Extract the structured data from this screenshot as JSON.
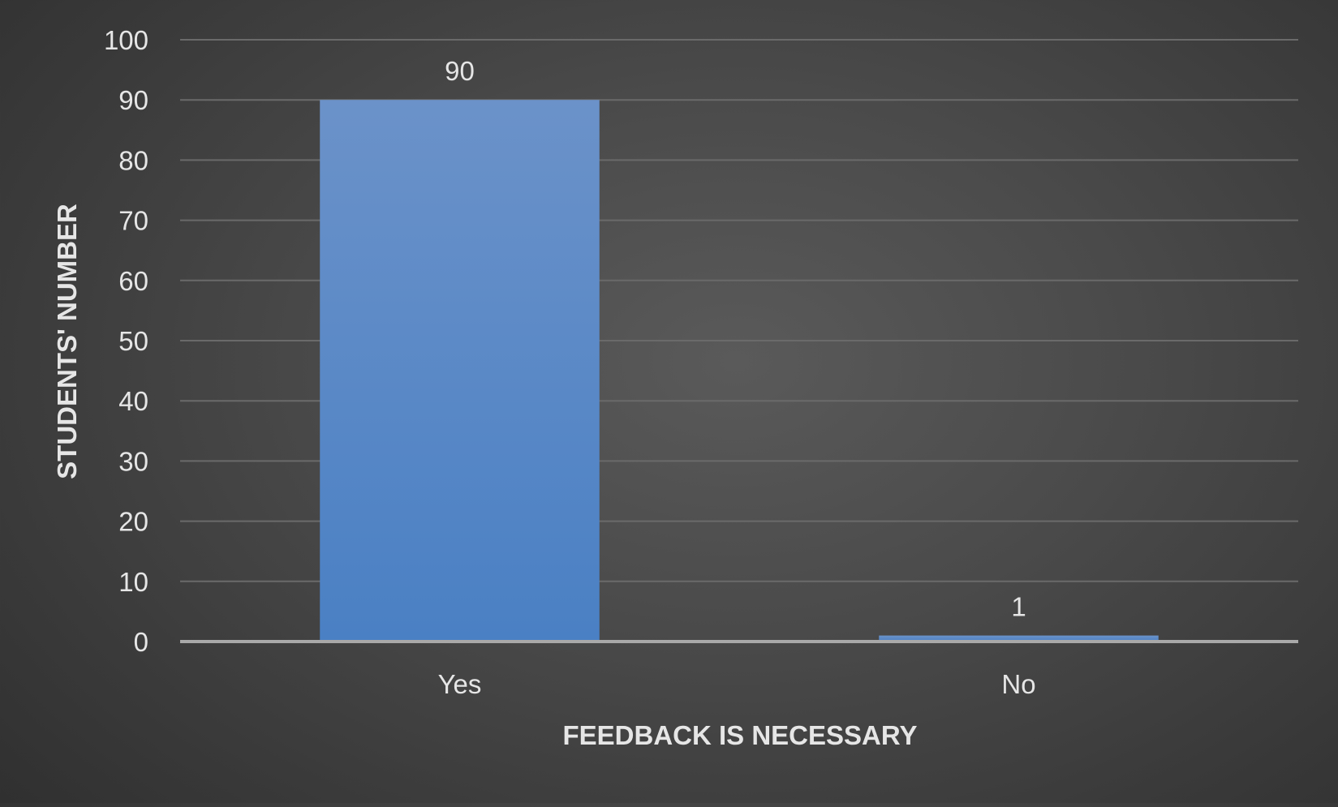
{
  "chart_data": {
    "type": "bar",
    "categories": [
      "Yes",
      "No"
    ],
    "values": [
      90,
      1
    ],
    "data_labels": [
      "90",
      "1"
    ],
    "title": "",
    "xlabel": "FEEDBACK IS NECESSARY",
    "ylabel": "STUDENTS' NUMBER",
    "ylim": [
      0,
      100
    ],
    "yticks": [
      0,
      10,
      20,
      30,
      40,
      50,
      60,
      70,
      80,
      90,
      100
    ],
    "grid": true,
    "legend": "none",
    "colors": {
      "bar_top": "#6b92c9",
      "bar_bottom": "#4a80c4",
      "grid": "#6a6a6a",
      "baseline": "#a9a9a9",
      "text": "#e6e6e6",
      "background": "#4a4a4a"
    }
  }
}
